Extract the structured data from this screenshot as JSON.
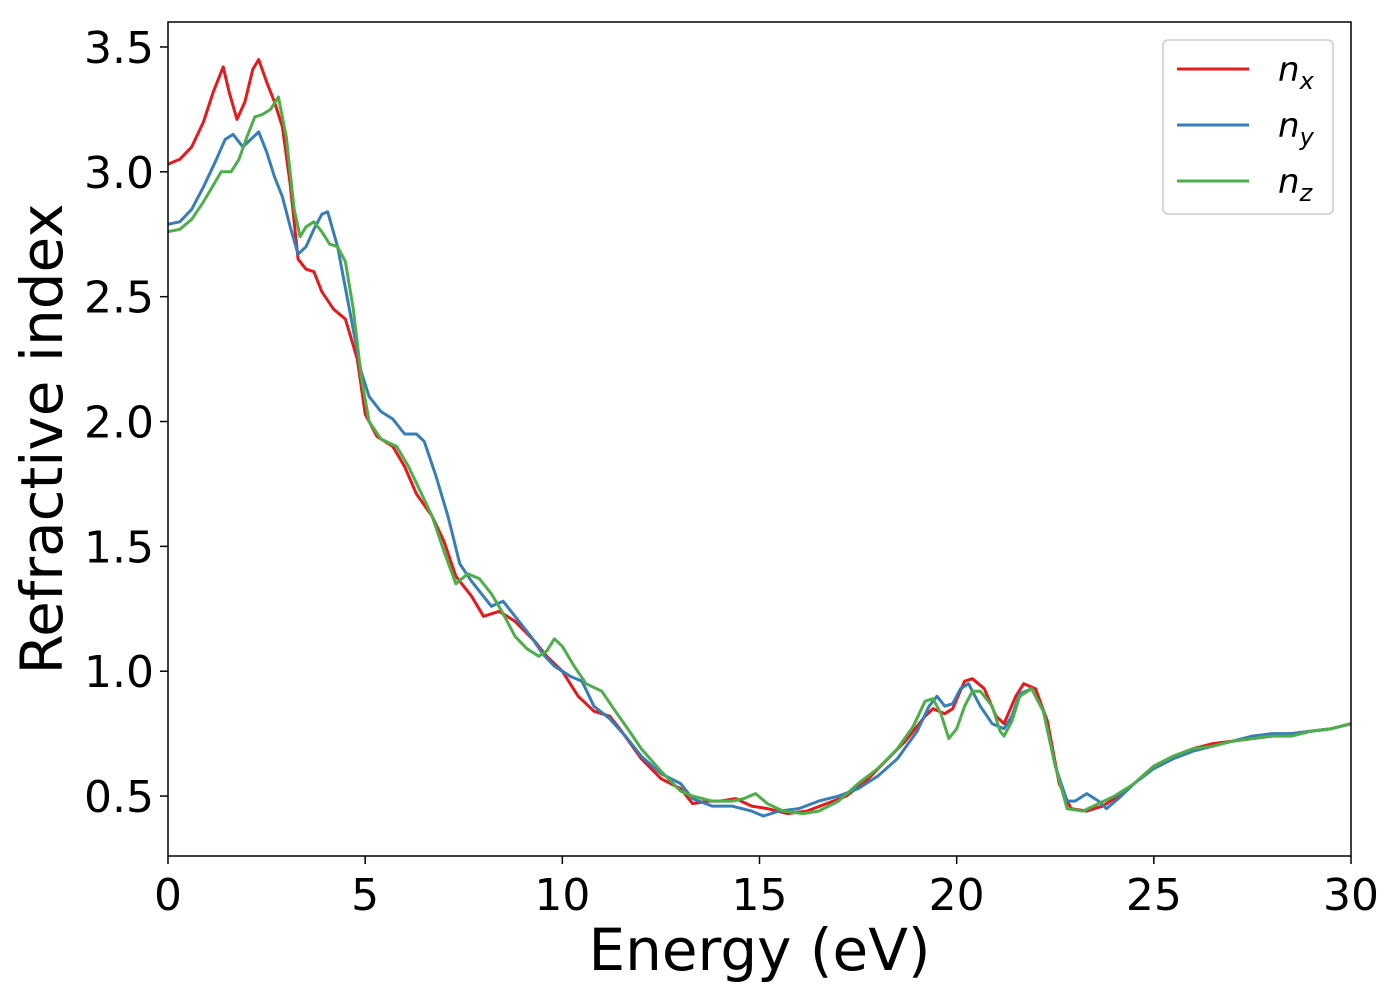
{
  "chart_data": {
    "type": "line",
    "title": "",
    "xlabel": "Energy (eV)",
    "ylabel": "Refractive index",
    "xlim": [
      0,
      30
    ],
    "ylim": [
      0.26,
      3.6
    ],
    "xticks": [
      0,
      5,
      10,
      15,
      20,
      25,
      30
    ],
    "xtick_labels": [
      "0",
      "5",
      "10",
      "15",
      "20",
      "25",
      "30"
    ],
    "yticks": [
      0.5,
      1.0,
      1.5,
      2.0,
      2.5,
      3.0,
      3.5
    ],
    "ytick_labels": [
      "0.5",
      "1.0",
      "1.5",
      "2.0",
      "2.5",
      "3.0",
      "3.5"
    ],
    "grid": false,
    "legend": "top-right",
    "series": [
      {
        "name": "n",
        "subscript": "x",
        "color": "#e41a1c",
        "points": [
          [
            0,
            3.03
          ],
          [
            0.3,
            3.05
          ],
          [
            0.6,
            3.1
          ],
          [
            0.9,
            3.2
          ],
          [
            1.15,
            3.32
          ],
          [
            1.4,
            3.42
          ],
          [
            1.55,
            3.32
          ],
          [
            1.75,
            3.21
          ],
          [
            1.95,
            3.28
          ],
          [
            2.15,
            3.41
          ],
          [
            2.3,
            3.45
          ],
          [
            2.5,
            3.36
          ],
          [
            2.7,
            3.28
          ],
          [
            2.9,
            3.18
          ],
          [
            3.1,
            2.95
          ],
          [
            3.3,
            2.65
          ],
          [
            3.5,
            2.61
          ],
          [
            3.7,
            2.6
          ],
          [
            3.9,
            2.52
          ],
          [
            4.2,
            2.45
          ],
          [
            4.5,
            2.41
          ],
          [
            4.8,
            2.25
          ],
          [
            5.0,
            2.03
          ],
          [
            5.3,
            1.94
          ],
          [
            5.7,
            1.9
          ],
          [
            6.0,
            1.82
          ],
          [
            6.3,
            1.71
          ],
          [
            6.7,
            1.62
          ],
          [
            7.0,
            1.52
          ],
          [
            7.3,
            1.38
          ],
          [
            7.7,
            1.3
          ],
          [
            8.0,
            1.22
          ],
          [
            8.4,
            1.24
          ],
          [
            8.8,
            1.2
          ],
          [
            9.3,
            1.12
          ],
          [
            9.6,
            1.06
          ],
          [
            10.0,
            1.0
          ],
          [
            10.4,
            0.9
          ],
          [
            10.8,
            0.84
          ],
          [
            11.2,
            0.82
          ],
          [
            11.5,
            0.76
          ],
          [
            12.0,
            0.65
          ],
          [
            12.5,
            0.57
          ],
          [
            13.0,
            0.53
          ],
          [
            13.3,
            0.47
          ],
          [
            13.7,
            0.48
          ],
          [
            14.0,
            0.48
          ],
          [
            14.4,
            0.49
          ],
          [
            14.8,
            0.46
          ],
          [
            15.2,
            0.45
          ],
          [
            15.7,
            0.43
          ],
          [
            16.2,
            0.44
          ],
          [
            16.7,
            0.47
          ],
          [
            17.2,
            0.5
          ],
          [
            17.7,
            0.56
          ],
          [
            18.2,
            0.64
          ],
          [
            18.7,
            0.72
          ],
          [
            19.2,
            0.82
          ],
          [
            19.4,
            0.85
          ],
          [
            19.7,
            0.83
          ],
          [
            19.9,
            0.85
          ],
          [
            20.2,
            0.96
          ],
          [
            20.4,
            0.97
          ],
          [
            20.7,
            0.93
          ],
          [
            21.0,
            0.82
          ],
          [
            21.2,
            0.79
          ],
          [
            21.5,
            0.9
          ],
          [
            21.7,
            0.95
          ],
          [
            22.0,
            0.93
          ],
          [
            22.3,
            0.8
          ],
          [
            22.6,
            0.55
          ],
          [
            22.9,
            0.45
          ],
          [
            23.3,
            0.44
          ],
          [
            23.7,
            0.46
          ],
          [
            24.0,
            0.49
          ],
          [
            24.5,
            0.55
          ],
          [
            25.0,
            0.62
          ],
          [
            25.5,
            0.66
          ],
          [
            26.0,
            0.69
          ],
          [
            26.5,
            0.71
          ],
          [
            27.0,
            0.72
          ],
          [
            27.5,
            0.73
          ],
          [
            28.0,
            0.74
          ],
          [
            28.5,
            0.75
          ],
          [
            29.0,
            0.76
          ],
          [
            29.5,
            0.77
          ],
          [
            30.0,
            0.79
          ]
        ]
      },
      {
        "name": "n",
        "subscript": "y",
        "color": "#377eb8",
        "points": [
          [
            0,
            2.79
          ],
          [
            0.3,
            2.8
          ],
          [
            0.6,
            2.85
          ],
          [
            0.9,
            2.94
          ],
          [
            1.2,
            3.04
          ],
          [
            1.45,
            3.13
          ],
          [
            1.65,
            3.15
          ],
          [
            1.9,
            3.1
          ],
          [
            2.1,
            3.13
          ],
          [
            2.3,
            3.16
          ],
          [
            2.5,
            3.08
          ],
          [
            2.7,
            2.98
          ],
          [
            2.9,
            2.9
          ],
          [
            3.1,
            2.78
          ],
          [
            3.3,
            2.67
          ],
          [
            3.5,
            2.7
          ],
          [
            3.7,
            2.77
          ],
          [
            3.9,
            2.83
          ],
          [
            4.05,
            2.84
          ],
          [
            4.3,
            2.7
          ],
          [
            4.6,
            2.45
          ],
          [
            4.9,
            2.2
          ],
          [
            5.1,
            2.1
          ],
          [
            5.4,
            2.04
          ],
          [
            5.7,
            2.01
          ],
          [
            6.0,
            1.95
          ],
          [
            6.3,
            1.95
          ],
          [
            6.5,
            1.92
          ],
          [
            6.8,
            1.78
          ],
          [
            7.1,
            1.62
          ],
          [
            7.4,
            1.43
          ],
          [
            7.7,
            1.36
          ],
          [
            8.0,
            1.3
          ],
          [
            8.2,
            1.26
          ],
          [
            8.5,
            1.28
          ],
          [
            8.8,
            1.22
          ],
          [
            9.2,
            1.14
          ],
          [
            9.5,
            1.07
          ],
          [
            9.8,
            1.02
          ],
          [
            10.2,
            0.98
          ],
          [
            10.5,
            0.96
          ],
          [
            10.8,
            0.86
          ],
          [
            11.2,
            0.81
          ],
          [
            11.6,
            0.74
          ],
          [
            12.0,
            0.66
          ],
          [
            12.5,
            0.59
          ],
          [
            13.0,
            0.55
          ],
          [
            13.3,
            0.49
          ],
          [
            13.8,
            0.46
          ],
          [
            14.3,
            0.46
          ],
          [
            14.8,
            0.44
          ],
          [
            15.1,
            0.42
          ],
          [
            15.5,
            0.44
          ],
          [
            16.0,
            0.45
          ],
          [
            16.5,
            0.48
          ],
          [
            17.0,
            0.5
          ],
          [
            17.5,
            0.53
          ],
          [
            18.0,
            0.58
          ],
          [
            18.5,
            0.65
          ],
          [
            19.0,
            0.76
          ],
          [
            19.3,
            0.86
          ],
          [
            19.5,
            0.9
          ],
          [
            19.7,
            0.86
          ],
          [
            19.9,
            0.87
          ],
          [
            20.1,
            0.93
          ],
          [
            20.3,
            0.95
          ],
          [
            20.6,
            0.86
          ],
          [
            20.9,
            0.79
          ],
          [
            21.2,
            0.77
          ],
          [
            21.4,
            0.82
          ],
          [
            21.6,
            0.91
          ],
          [
            21.9,
            0.93
          ],
          [
            22.2,
            0.84
          ],
          [
            22.5,
            0.62
          ],
          [
            22.8,
            0.48
          ],
          [
            23.0,
            0.48
          ],
          [
            23.3,
            0.51
          ],
          [
            23.6,
            0.48
          ],
          [
            23.8,
            0.45
          ],
          [
            24.1,
            0.49
          ],
          [
            24.5,
            0.55
          ],
          [
            25.0,
            0.61
          ],
          [
            25.5,
            0.65
          ],
          [
            26.0,
            0.68
          ],
          [
            26.5,
            0.7
          ],
          [
            27.0,
            0.72
          ],
          [
            27.5,
            0.74
          ],
          [
            28.0,
            0.75
          ],
          [
            28.5,
            0.75
          ],
          [
            29.0,
            0.76
          ],
          [
            29.5,
            0.77
          ],
          [
            30.0,
            0.79
          ]
        ]
      },
      {
        "name": "n",
        "subscript": "z",
        "color": "#4daf4a",
        "points": [
          [
            0,
            2.76
          ],
          [
            0.3,
            2.77
          ],
          [
            0.6,
            2.81
          ],
          [
            0.9,
            2.88
          ],
          [
            1.2,
            2.96
          ],
          [
            1.35,
            3.0
          ],
          [
            1.6,
            3.0
          ],
          [
            1.8,
            3.05
          ],
          [
            2.0,
            3.14
          ],
          [
            2.2,
            3.22
          ],
          [
            2.4,
            3.23
          ],
          [
            2.6,
            3.25
          ],
          [
            2.8,
            3.3
          ],
          [
            3.0,
            3.14
          ],
          [
            3.2,
            2.85
          ],
          [
            3.35,
            2.74
          ],
          [
            3.5,
            2.78
          ],
          [
            3.7,
            2.8
          ],
          [
            3.9,
            2.76
          ],
          [
            4.1,
            2.71
          ],
          [
            4.3,
            2.7
          ],
          [
            4.5,
            2.64
          ],
          [
            4.7,
            2.45
          ],
          [
            4.9,
            2.18
          ],
          [
            5.1,
            2.0
          ],
          [
            5.4,
            1.93
          ],
          [
            5.8,
            1.9
          ],
          [
            6.1,
            1.82
          ],
          [
            6.4,
            1.72
          ],
          [
            6.7,
            1.62
          ],
          [
            7.0,
            1.48
          ],
          [
            7.3,
            1.35
          ],
          [
            7.6,
            1.39
          ],
          [
            7.9,
            1.37
          ],
          [
            8.2,
            1.31
          ],
          [
            8.5,
            1.23
          ],
          [
            8.8,
            1.14
          ],
          [
            9.1,
            1.09
          ],
          [
            9.4,
            1.06
          ],
          [
            9.6,
            1.08
          ],
          [
            9.8,
            1.13
          ],
          [
            10.0,
            1.1
          ],
          [
            10.3,
            1.02
          ],
          [
            10.6,
            0.95
          ],
          [
            11.0,
            0.92
          ],
          [
            11.3,
            0.85
          ],
          [
            11.7,
            0.76
          ],
          [
            12.0,
            0.69
          ],
          [
            12.5,
            0.6
          ],
          [
            13.0,
            0.52
          ],
          [
            13.3,
            0.5
          ],
          [
            13.8,
            0.48
          ],
          [
            14.3,
            0.48
          ],
          [
            14.6,
            0.49
          ],
          [
            14.9,
            0.51
          ],
          [
            15.2,
            0.47
          ],
          [
            15.6,
            0.44
          ],
          [
            16.1,
            0.43
          ],
          [
            16.5,
            0.44
          ],
          [
            17.0,
            0.48
          ],
          [
            17.5,
            0.55
          ],
          [
            18.0,
            0.61
          ],
          [
            18.5,
            0.69
          ],
          [
            18.9,
            0.78
          ],
          [
            19.2,
            0.88
          ],
          [
            19.4,
            0.89
          ],
          [
            19.6,
            0.83
          ],
          [
            19.8,
            0.73
          ],
          [
            20.0,
            0.77
          ],
          [
            20.2,
            0.86
          ],
          [
            20.4,
            0.92
          ],
          [
            20.6,
            0.92
          ],
          [
            20.9,
            0.86
          ],
          [
            21.1,
            0.76
          ],
          [
            21.2,
            0.74
          ],
          [
            21.4,
            0.8
          ],
          [
            21.6,
            0.9
          ],
          [
            21.9,
            0.93
          ],
          [
            22.2,
            0.84
          ],
          [
            22.5,
            0.62
          ],
          [
            22.8,
            0.45
          ],
          [
            23.2,
            0.44
          ],
          [
            23.6,
            0.47
          ],
          [
            24.0,
            0.5
          ],
          [
            24.5,
            0.55
          ],
          [
            25.0,
            0.62
          ],
          [
            25.5,
            0.66
          ],
          [
            26.0,
            0.69
          ],
          [
            26.5,
            0.7
          ],
          [
            27.0,
            0.72
          ],
          [
            27.5,
            0.73
          ],
          [
            28.0,
            0.74
          ],
          [
            28.5,
            0.74
          ],
          [
            29.0,
            0.76
          ],
          [
            29.5,
            0.77
          ],
          [
            30.0,
            0.79
          ]
        ]
      }
    ]
  }
}
